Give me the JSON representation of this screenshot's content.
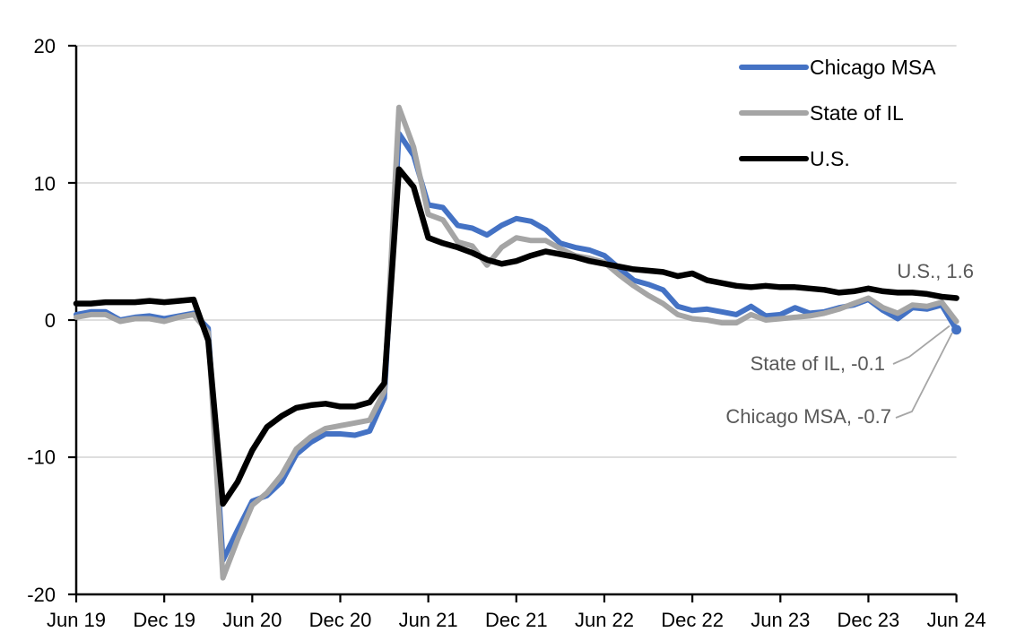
{
  "chart_data": {
    "type": "line",
    "title": "",
    "grid": true,
    "legend_position": "top-right",
    "ylim": [
      -20,
      20
    ],
    "y_ticks": [
      20,
      10,
      0,
      -10,
      -20
    ],
    "y_tick_labels": [
      "20",
      "10",
      "0",
      "-10",
      "-20"
    ],
    "x_tick_labels": [
      "Jun 19",
      "Dec 19",
      "Jun 20",
      "Dec 20",
      "Jun 21",
      "Dec 21",
      "Jun 22",
      "Dec 22",
      "Jun 23",
      "Dec 23",
      "Jun 24"
    ],
    "categories": [
      "Jun 19",
      "Jul 19",
      "Aug 19",
      "Sep 19",
      "Oct 19",
      "Nov 19",
      "Dec 19",
      "Jan 20",
      "Feb 20",
      "Mar 20",
      "Apr 20",
      "May 20",
      "Jun 20",
      "Jul 20",
      "Aug 20",
      "Sep 20",
      "Oct 20",
      "Nov 20",
      "Dec 20",
      "Jan 21",
      "Feb 21",
      "Mar 21",
      "Apr 21",
      "May 21",
      "Jun 21",
      "Jul 21",
      "Aug 21",
      "Sep 21",
      "Oct 21",
      "Nov 21",
      "Dec 21",
      "Jan 22",
      "Feb 22",
      "Mar 22",
      "Apr 22",
      "May 22",
      "Jun 22",
      "Jul 22",
      "Aug 22",
      "Sep 22",
      "Oct 22",
      "Nov 22",
      "Dec 22",
      "Jan 23",
      "Feb 23",
      "Mar 23",
      "Apr 23",
      "May 23",
      "Jun 23",
      "Jul 23",
      "Aug 23",
      "Sep 23",
      "Oct 23",
      "Nov 23",
      "Dec 23",
      "Jan 24",
      "Feb 24",
      "Mar 24",
      "Apr 24",
      "May 24",
      "Jun 24"
    ],
    "series": [
      {
        "name": "Chicago MSA",
        "color": "#4472C4",
        "end_label": "Chicago MSA, -0.7",
        "end_value": -0.7,
        "values": [
          0.4,
          0.6,
          0.6,
          0.0,
          0.2,
          0.3,
          0.1,
          0.3,
          0.5,
          -0.6,
          -17.5,
          -15.3,
          -13.2,
          -12.8,
          -11.8,
          -9.8,
          -8.9,
          -8.3,
          -8.3,
          -8.4,
          -8.1,
          -5.7,
          13.6,
          12.0,
          8.4,
          8.2,
          6.9,
          6.7,
          6.2,
          6.9,
          7.4,
          7.2,
          6.6,
          5.6,
          5.3,
          5.1,
          4.7,
          3.8,
          2.9,
          2.6,
          2.2,
          1.0,
          0.7,
          0.8,
          0.6,
          0.4,
          1.0,
          0.3,
          0.4,
          0.9,
          0.5,
          0.6,
          0.9,
          1.1,
          1.5,
          0.7,
          0.1,
          0.9,
          0.8,
          1.1,
          -0.7
        ]
      },
      {
        "name": "State of IL",
        "color": "#A5A5A5",
        "end_label": "State of IL, -0.1",
        "end_value": -0.1,
        "values": [
          0.2,
          0.4,
          0.4,
          -0.1,
          0.1,
          0.1,
          -0.1,
          0.2,
          0.4,
          -0.9,
          -18.8,
          -16.0,
          -13.5,
          -12.6,
          -11.3,
          -9.4,
          -8.5,
          -7.9,
          -7.7,
          -7.5,
          -7.3,
          -5.2,
          15.5,
          12.6,
          7.7,
          7.3,
          5.7,
          5.4,
          4.0,
          5.3,
          6.0,
          5.8,
          5.8,
          5.2,
          4.7,
          4.5,
          4.2,
          3.3,
          2.5,
          1.8,
          1.2,
          0.4,
          0.1,
          0.0,
          -0.2,
          -0.2,
          0.4,
          0.0,
          0.1,
          0.2,
          0.3,
          0.5,
          0.8,
          1.2,
          1.6,
          0.9,
          0.5,
          1.1,
          1.0,
          1.3,
          -0.1
        ]
      },
      {
        "name": "U.S.",
        "color": "#000000",
        "end_label": "U.S., 1.6",
        "end_value": 1.6,
        "values": [
          1.2,
          1.2,
          1.3,
          1.3,
          1.3,
          1.4,
          1.3,
          1.4,
          1.5,
          -1.5,
          -13.4,
          -11.8,
          -9.5,
          -7.8,
          -7.0,
          -6.4,
          -6.2,
          -6.1,
          -6.3,
          -6.3,
          -6.0,
          -4.6,
          11.0,
          9.7,
          6.0,
          5.6,
          5.3,
          4.9,
          4.4,
          4.1,
          4.3,
          4.7,
          5.0,
          4.8,
          4.6,
          4.3,
          4.1,
          3.9,
          3.7,
          3.6,
          3.5,
          3.2,
          3.4,
          2.9,
          2.7,
          2.5,
          2.4,
          2.5,
          2.4,
          2.4,
          2.3,
          2.2,
          2.0,
          2.1,
          2.3,
          2.1,
          2.0,
          2.0,
          1.9,
          1.7,
          1.6
        ]
      }
    ],
    "annotations": [
      {
        "text": "U.S., 1.6",
        "series": "U.S."
      },
      {
        "text": "State of IL, -0.1",
        "series": "State of IL"
      },
      {
        "text": "Chicago MSA, -0.7",
        "series": "Chicago MSA"
      }
    ]
  },
  "colors": {
    "background": "#FFFFFF",
    "gridline": "#D9D9D9",
    "axis": "#000000",
    "annotation_text": "#595959",
    "leader_line": "#A6A6A6"
  }
}
